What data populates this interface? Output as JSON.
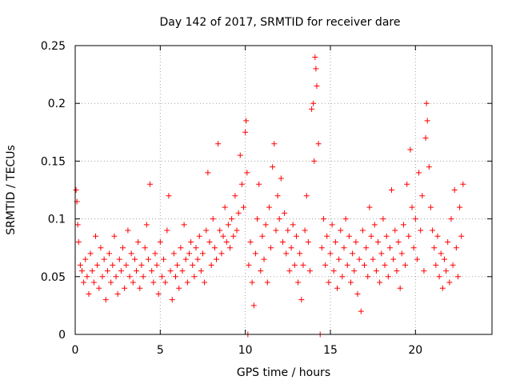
{
  "chart_data": {
    "type": "scatter",
    "title": "Day 142 of 2017, SRMTID for receiver dare",
    "xlabel": "GPS time / hours",
    "ylabel": "SRMTID / TECUs",
    "xlim": [
      0,
      24.5
    ],
    "ylim": [
      0,
      0.25
    ],
    "x_ticks": [
      0,
      5,
      10,
      15,
      20
    ],
    "x_tick_labels": [
      "0",
      "5",
      "10",
      "15",
      "20"
    ],
    "y_ticks": [
      0,
      0.05,
      0.1,
      0.15,
      0.2,
      0.25
    ],
    "y_tick_labels": [
      "0",
      "0.05",
      "0.1",
      "0.15",
      "0.2",
      "0.25"
    ],
    "grid": true,
    "marker": "+",
    "color": "#ff0000",
    "series": [
      {
        "name": "SRMTID",
        "points": [
          [
            0.05,
            0.125
          ],
          [
            0.1,
            0.115
          ],
          [
            0.15,
            0.095
          ],
          [
            0.2,
            0.08
          ],
          [
            0.3,
            0.06
          ],
          [
            0.4,
            0.055
          ],
          [
            0.5,
            0.045
          ],
          [
            0.6,
            0.065
          ],
          [
            0.7,
            0.05
          ],
          [
            0.8,
            0.035
          ],
          [
            0.9,
            0.07
          ],
          [
            1.0,
            0.055
          ],
          [
            1.1,
            0.045
          ],
          [
            1.2,
            0.085
          ],
          [
            1.3,
            0.06
          ],
          [
            1.4,
            0.04
          ],
          [
            1.5,
            0.075
          ],
          [
            1.6,
            0.05
          ],
          [
            1.7,
            0.065
          ],
          [
            1.8,
            0.03
          ],
          [
            1.9,
            0.055
          ],
          [
            2.0,
            0.07
          ],
          [
            2.1,
            0.045
          ],
          [
            2.2,
            0.06
          ],
          [
            2.3,
            0.085
          ],
          [
            2.4,
            0.05
          ],
          [
            2.5,
            0.035
          ],
          [
            2.6,
            0.065
          ],
          [
            2.7,
            0.055
          ],
          [
            2.8,
            0.075
          ],
          [
            2.9,
            0.04
          ],
          [
            3.0,
            0.06
          ],
          [
            3.1,
            0.09
          ],
          [
            3.2,
            0.05
          ],
          [
            3.3,
            0.07
          ],
          [
            3.4,
            0.045
          ],
          [
            3.5,
            0.065
          ],
          [
            3.6,
            0.055
          ],
          [
            3.7,
            0.08
          ],
          [
            3.8,
            0.04
          ],
          [
            3.9,
            0.06
          ],
          [
            4.0,
            0.05
          ],
          [
            4.1,
            0.075
          ],
          [
            4.2,
            0.095
          ],
          [
            4.3,
            0.065
          ],
          [
            4.4,
            0.13
          ],
          [
            4.5,
            0.055
          ],
          [
            4.6,
            0.045
          ],
          [
            4.7,
            0.07
          ],
          [
            4.8,
            0.06
          ],
          [
            4.9,
            0.035
          ],
          [
            5.0,
            0.08
          ],
          [
            5.1,
            0.05
          ],
          [
            5.2,
            0.065
          ],
          [
            5.3,
            0.045
          ],
          [
            5.4,
            0.09
          ],
          [
            5.5,
            0.12
          ],
          [
            5.6,
            0.055
          ],
          [
            5.7,
            0.03
          ],
          [
            5.8,
            0.07
          ],
          [
            5.9,
            0.05
          ],
          [
            6.0,
            0.06
          ],
          [
            6.1,
            0.04
          ],
          [
            6.2,
            0.075
          ],
          [
            6.3,
            0.055
          ],
          [
            6.4,
            0.095
          ],
          [
            6.5,
            0.065
          ],
          [
            6.6,
            0.045
          ],
          [
            6.7,
            0.07
          ],
          [
            6.8,
            0.08
          ],
          [
            6.9,
            0.06
          ],
          [
            7.0,
            0.05
          ],
          [
            7.1,
            0.075
          ],
          [
            7.2,
            0.065
          ],
          [
            7.3,
            0.085
          ],
          [
            7.4,
            0.055
          ],
          [
            7.5,
            0.07
          ],
          [
            7.6,
            0.045
          ],
          [
            7.7,
            0.09
          ],
          [
            7.8,
            0.14
          ],
          [
            7.9,
            0.08
          ],
          [
            8.0,
            0.06
          ],
          [
            8.1,
            0.1
          ],
          [
            8.2,
            0.075
          ],
          [
            8.3,
            0.065
          ],
          [
            8.4,
            0.165
          ],
          [
            8.5,
            0.09
          ],
          [
            8.6,
            0.07
          ],
          [
            8.7,
            0.085
          ],
          [
            8.8,
            0.11
          ],
          [
            8.9,
            0.08
          ],
          [
            9.0,
            0.095
          ],
          [
            9.1,
            0.075
          ],
          [
            9.2,
            0.1
          ],
          [
            9.3,
            0.085
          ],
          [
            9.4,
            0.12
          ],
          [
            9.5,
            0.09
          ],
          [
            9.6,
            0.105
          ],
          [
            9.7,
            0.155
          ],
          [
            9.8,
            0.13
          ],
          [
            9.9,
            0.11
          ],
          [
            10.0,
            0.175
          ],
          [
            10.05,
            0.185
          ],
          [
            10.1,
            0.14
          ],
          [
            10.15,
            0.0
          ],
          [
            10.2,
            0.06
          ],
          [
            10.3,
            0.08
          ],
          [
            10.4,
            0.045
          ],
          [
            10.5,
            0.025
          ],
          [
            10.6,
            0.07
          ],
          [
            10.7,
            0.1
          ],
          [
            10.8,
            0.13
          ],
          [
            10.9,
            0.055
          ],
          [
            11.0,
            0.085
          ],
          [
            11.1,
            0.065
          ],
          [
            11.2,
            0.095
          ],
          [
            11.3,
            0.045
          ],
          [
            11.4,
            0.11
          ],
          [
            11.5,
            0.075
          ],
          [
            11.6,
            0.145
          ],
          [
            11.7,
            0.165
          ],
          [
            11.8,
            0.09
          ],
          [
            11.9,
            0.12
          ],
          [
            12.0,
            0.1
          ],
          [
            12.1,
            0.135
          ],
          [
            12.2,
            0.08
          ],
          [
            12.3,
            0.105
          ],
          [
            12.4,
            0.07
          ],
          [
            12.5,
            0.09
          ],
          [
            12.6,
            0.055
          ],
          [
            12.7,
            0.075
          ],
          [
            12.8,
            0.095
          ],
          [
            12.9,
            0.06
          ],
          [
            13.0,
            0.085
          ],
          [
            13.1,
            0.045
          ],
          [
            13.2,
            0.07
          ],
          [
            13.3,
            0.03
          ],
          [
            13.4,
            0.06
          ],
          [
            13.5,
            0.09
          ],
          [
            13.6,
            0.12
          ],
          [
            13.7,
            0.08
          ],
          [
            13.8,
            0.055
          ],
          [
            13.9,
            0.195
          ],
          [
            14.0,
            0.2
          ],
          [
            14.05,
            0.15
          ],
          [
            14.1,
            0.24
          ],
          [
            14.15,
            0.23
          ],
          [
            14.2,
            0.215
          ],
          [
            14.3,
            0.165
          ],
          [
            14.4,
            0.0
          ],
          [
            14.5,
            0.075
          ],
          [
            14.6,
            0.1
          ],
          [
            14.7,
            0.06
          ],
          [
            14.8,
            0.085
          ],
          [
            14.9,
            0.045
          ],
          [
            15.0,
            0.07
          ],
          [
            15.1,
            0.095
          ],
          [
            15.2,
            0.055
          ],
          [
            15.3,
            0.08
          ],
          [
            15.4,
            0.04
          ],
          [
            15.5,
            0.065
          ],
          [
            15.6,
            0.09
          ],
          [
            15.7,
            0.05
          ],
          [
            15.8,
            0.075
          ],
          [
            15.9,
            0.1
          ],
          [
            16.0,
            0.06
          ],
          [
            16.1,
            0.085
          ],
          [
            16.2,
            0.045
          ],
          [
            16.3,
            0.07
          ],
          [
            16.4,
            0.055
          ],
          [
            16.5,
            0.08
          ],
          [
            16.6,
            0.035
          ],
          [
            16.7,
            0.065
          ],
          [
            16.8,
            0.02
          ],
          [
            16.9,
            0.09
          ],
          [
            17.0,
            0.06
          ],
          [
            17.1,
            0.075
          ],
          [
            17.2,
            0.05
          ],
          [
            17.3,
            0.11
          ],
          [
            17.4,
            0.085
          ],
          [
            17.5,
            0.065
          ],
          [
            17.6,
            0.095
          ],
          [
            17.7,
            0.055
          ],
          [
            17.8,
            0.08
          ],
          [
            17.9,
            0.045
          ],
          [
            18.0,
            0.07
          ],
          [
            18.1,
            0.1
          ],
          [
            18.2,
            0.06
          ],
          [
            18.3,
            0.085
          ],
          [
            18.4,
            0.05
          ],
          [
            18.5,
            0.075
          ],
          [
            18.6,
            0.125
          ],
          [
            18.7,
            0.065
          ],
          [
            18.8,
            0.09
          ],
          [
            18.9,
            0.055
          ],
          [
            19.0,
            0.08
          ],
          [
            19.1,
            0.04
          ],
          [
            19.2,
            0.07
          ],
          [
            19.3,
            0.095
          ],
          [
            19.4,
            0.06
          ],
          [
            19.5,
            0.13
          ],
          [
            19.6,
            0.085
          ],
          [
            19.7,
            0.16
          ],
          [
            19.8,
            0.11
          ],
          [
            19.9,
            0.075
          ],
          [
            20.0,
            0.1
          ],
          [
            20.1,
            0.065
          ],
          [
            20.2,
            0.14
          ],
          [
            20.3,
            0.09
          ],
          [
            20.4,
            0.12
          ],
          [
            20.5,
            0.055
          ],
          [
            20.6,
            0.17
          ],
          [
            20.65,
            0.2
          ],
          [
            20.7,
            0.185
          ],
          [
            20.8,
            0.145
          ],
          [
            20.9,
            0.11
          ],
          [
            21.0,
            0.09
          ],
          [
            21.1,
            0.075
          ],
          [
            21.2,
            0.06
          ],
          [
            21.3,
            0.085
          ],
          [
            21.4,
            0.05
          ],
          [
            21.5,
            0.07
          ],
          [
            21.6,
            0.04
          ],
          [
            21.7,
            0.065
          ],
          [
            21.8,
            0.055
          ],
          [
            21.9,
            0.08
          ],
          [
            22.0,
            0.045
          ],
          [
            22.1,
            0.1
          ],
          [
            22.2,
            0.06
          ],
          [
            22.3,
            0.125
          ],
          [
            22.4,
            0.075
          ],
          [
            22.5,
            0.05
          ],
          [
            22.6,
            0.11
          ],
          [
            22.7,
            0.085
          ],
          [
            22.8,
            0.13
          ]
        ]
      }
    ]
  }
}
